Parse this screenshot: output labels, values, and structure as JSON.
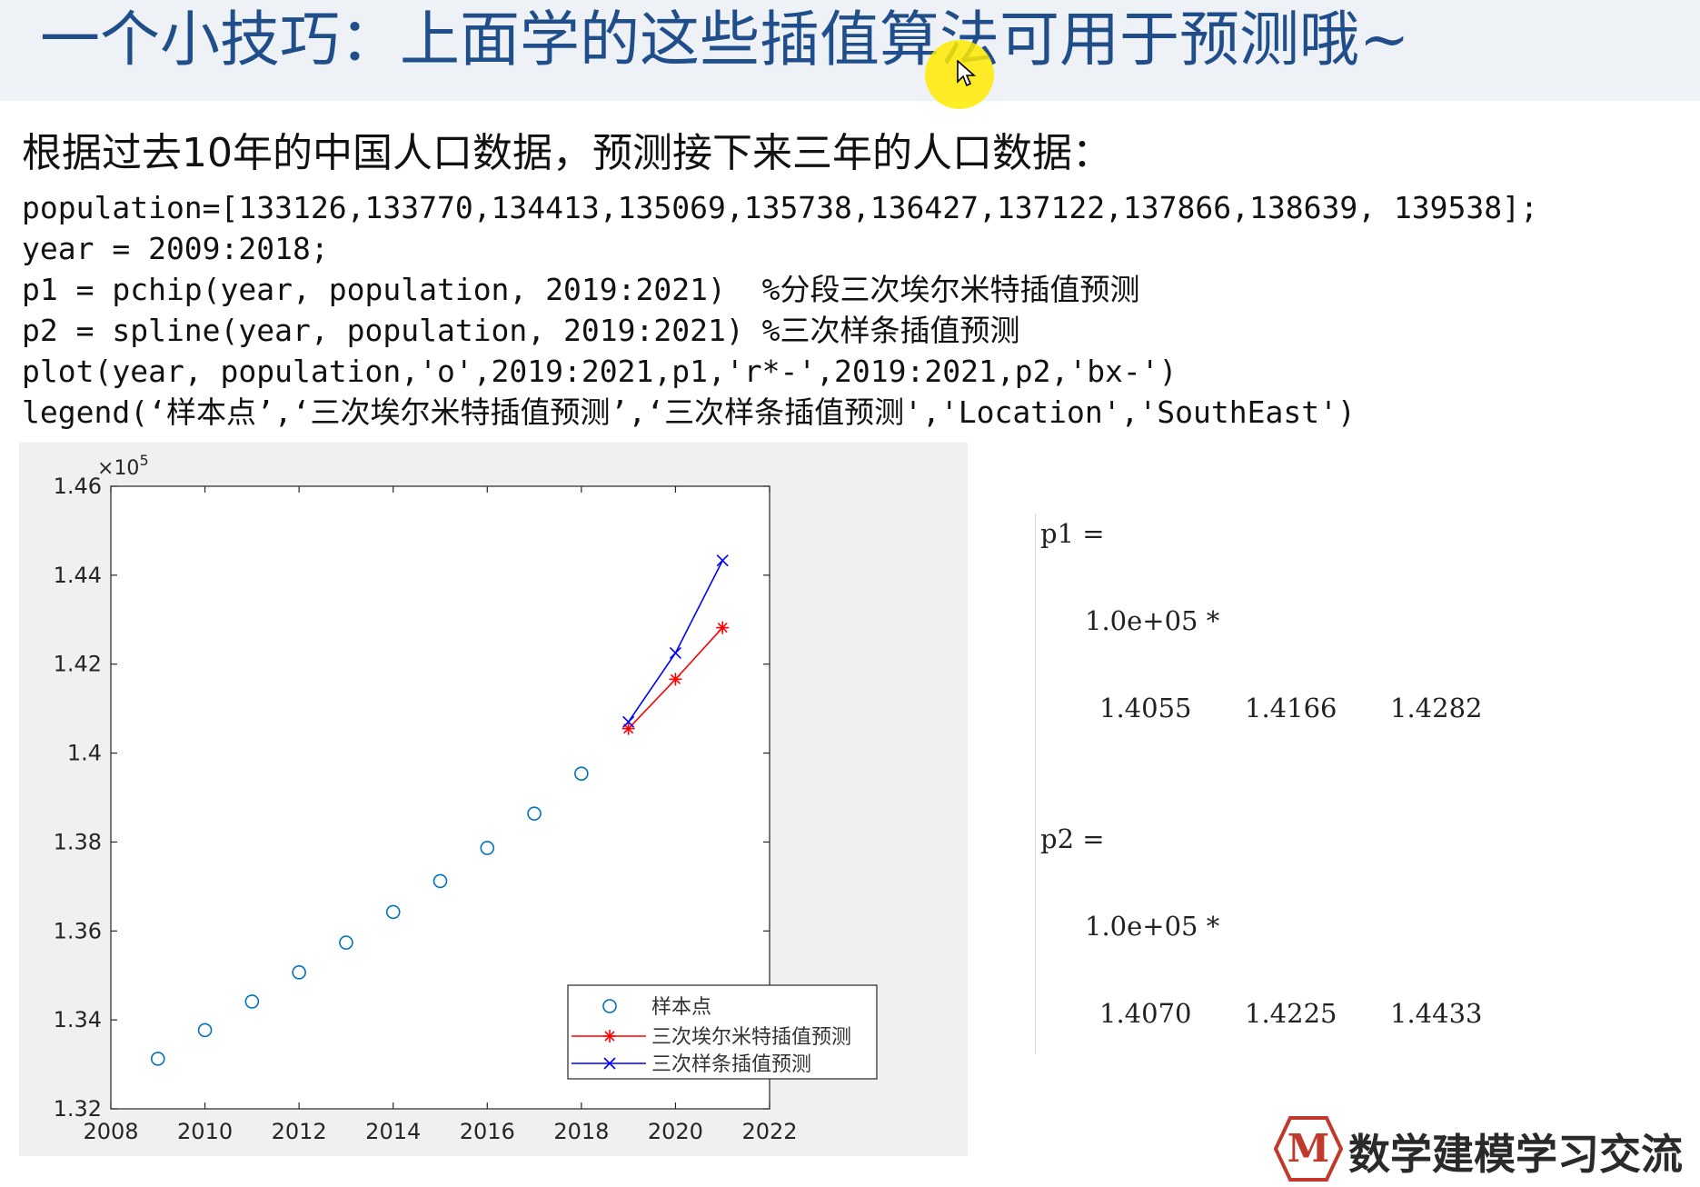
{
  "slide": {
    "title": "一个小技巧：上面学的这些插值算法可用于预测哦~",
    "intro": "根据过去10年的中国人口数据，预测接下来三年的人口数据："
  },
  "code_lines": [
    "population=[133126,133770,134413,135069,135738,136427,137122,137866,138639, 139538];",
    "year = 2009:2018;",
    "p1 = pchip(year, population, 2019:2021)  %分段三次埃尔米特插值预测",
    "p2 = spline(year, population, 2019:2021) %三次样条插值预测",
    "plot(year, population,'o',2019:2021,p1,'r*-',2019:2021,p2,'bx-')",
    "legend(‘样本点’,‘三次埃尔米特插值预测’,‘三次样条插值预测','Location','SouthEast')"
  ],
  "chart_data": {
    "type": "line",
    "x_ticks": [
      "2008",
      "2010",
      "2012",
      "2014",
      "2016",
      "2018",
      "2020",
      "2022"
    ],
    "y_ticks": [
      "1.32",
      "1.34",
      "1.36",
      "1.38",
      "1.4",
      "1.42",
      "1.44",
      "1.46"
    ],
    "y_multiplier": "10",
    "y_multiplier_exp": "5",
    "xlim": [
      2008,
      2022
    ],
    "ylim": [
      132000,
      146000
    ],
    "grid": false,
    "legend_position": "bottom-right",
    "series": [
      {
        "name": "样本点",
        "marker": "o",
        "line": false,
        "color": "#0072bd",
        "x": [
          2009,
          2010,
          2011,
          2012,
          2013,
          2014,
          2015,
          2016,
          2017,
          2018
        ],
        "y": [
          133126,
          133770,
          134413,
          135069,
          135738,
          136427,
          137122,
          137866,
          138639,
          139538
        ]
      },
      {
        "name": "三次埃尔米特插值预测",
        "marker": "*",
        "line": true,
        "color": "#ff0000",
        "x": [
          2019,
          2020,
          2021
        ],
        "y": [
          140550,
          141660,
          142820
        ]
      },
      {
        "name": "三次样条插值预测",
        "marker": "x",
        "line": true,
        "color": "#0000ff",
        "x": [
          2019,
          2020,
          2021
        ],
        "y": [
          140700,
          142250,
          144330
        ]
      }
    ]
  },
  "console": {
    "p1_label": "p1 =",
    "p1_scale": "1.0e+05 *",
    "p1_values": [
      "1.4055",
      "1.4166",
      "1.4282"
    ],
    "p2_label": "p2 =",
    "p2_scale": "1.0e+05 *",
    "p2_values": [
      "1.4070",
      "1.4225",
      "1.4433"
    ]
  },
  "logo": {
    "badge_letter": "M",
    "text": "数学建模学习交流",
    "badge_color": "#c0392b"
  },
  "cursor": {
    "highlight_color": "#ffeb00"
  }
}
